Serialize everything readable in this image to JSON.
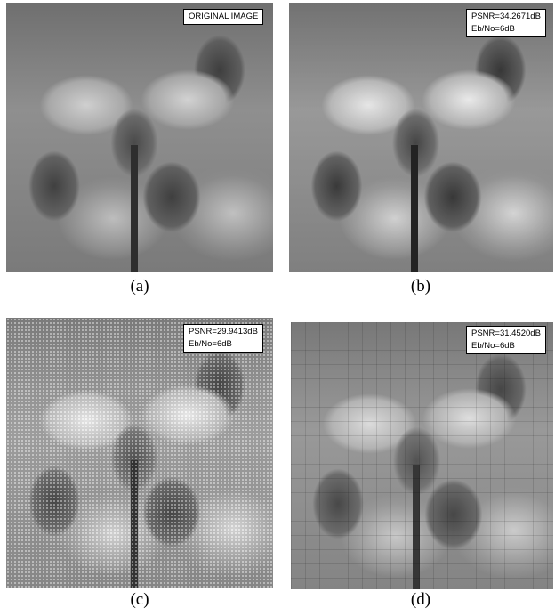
{
  "panels": [
    {
      "id": "a",
      "caption": "(a)",
      "overlay_lines": [
        "ORIGINAL IMAGE"
      ]
    },
    {
      "id": "b",
      "caption": "(b)",
      "overlay_lines": [
        "PSNR=34.2671dB",
        "Eb/No=6dB"
      ]
    },
    {
      "id": "c",
      "caption": "(c)",
      "overlay_lines": [
        "PSNR=29.9413dB",
        "Eb/No=6dB"
      ]
    },
    {
      "id": "d",
      "caption": "(d)",
      "overlay_lines": [
        "PSNR=31.4520dB",
        "Eb/No=6dB"
      ]
    }
  ],
  "image_content": "grayscale orchid flowers"
}
